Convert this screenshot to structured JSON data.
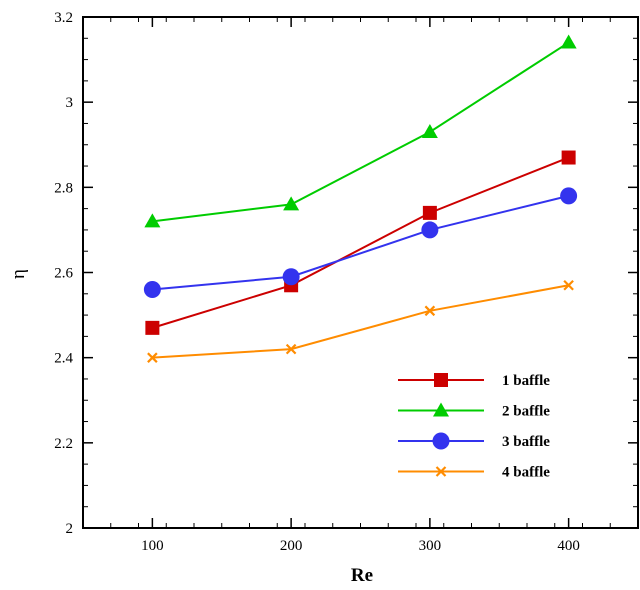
{
  "chart_data": {
    "type": "line",
    "xlabel": "Re",
    "ylabel": "η",
    "x": [
      100,
      200,
      300,
      400
    ],
    "xlim": [
      50,
      450
    ],
    "ylim": [
      2,
      3.2
    ],
    "x_ticks": [
      "100",
      "200",
      "300",
      "400"
    ],
    "y_ticks": [
      "2",
      "2.2",
      "2.4",
      "2.6",
      "2.8",
      "3",
      "3.2"
    ],
    "legend_position": "bottom-right",
    "grid": false,
    "series": [
      {
        "name": "1 baffle",
        "values": [
          2.47,
          2.57,
          2.74,
          2.87
        ],
        "color": "#cc0000",
        "marker": "square"
      },
      {
        "name": "2 baffle",
        "values": [
          2.72,
          2.76,
          2.93,
          3.14
        ],
        "color": "#00cc00",
        "marker": "triangle"
      },
      {
        "name": "3 baffle",
        "values": [
          2.56,
          2.59,
          2.7,
          2.78
        ],
        "color": "#3333ee",
        "marker": "circle"
      },
      {
        "name": "4 baffle",
        "values": [
          2.4,
          2.42,
          2.51,
          2.57
        ],
        "color": "#ff8c00",
        "marker": "x"
      }
    ]
  }
}
